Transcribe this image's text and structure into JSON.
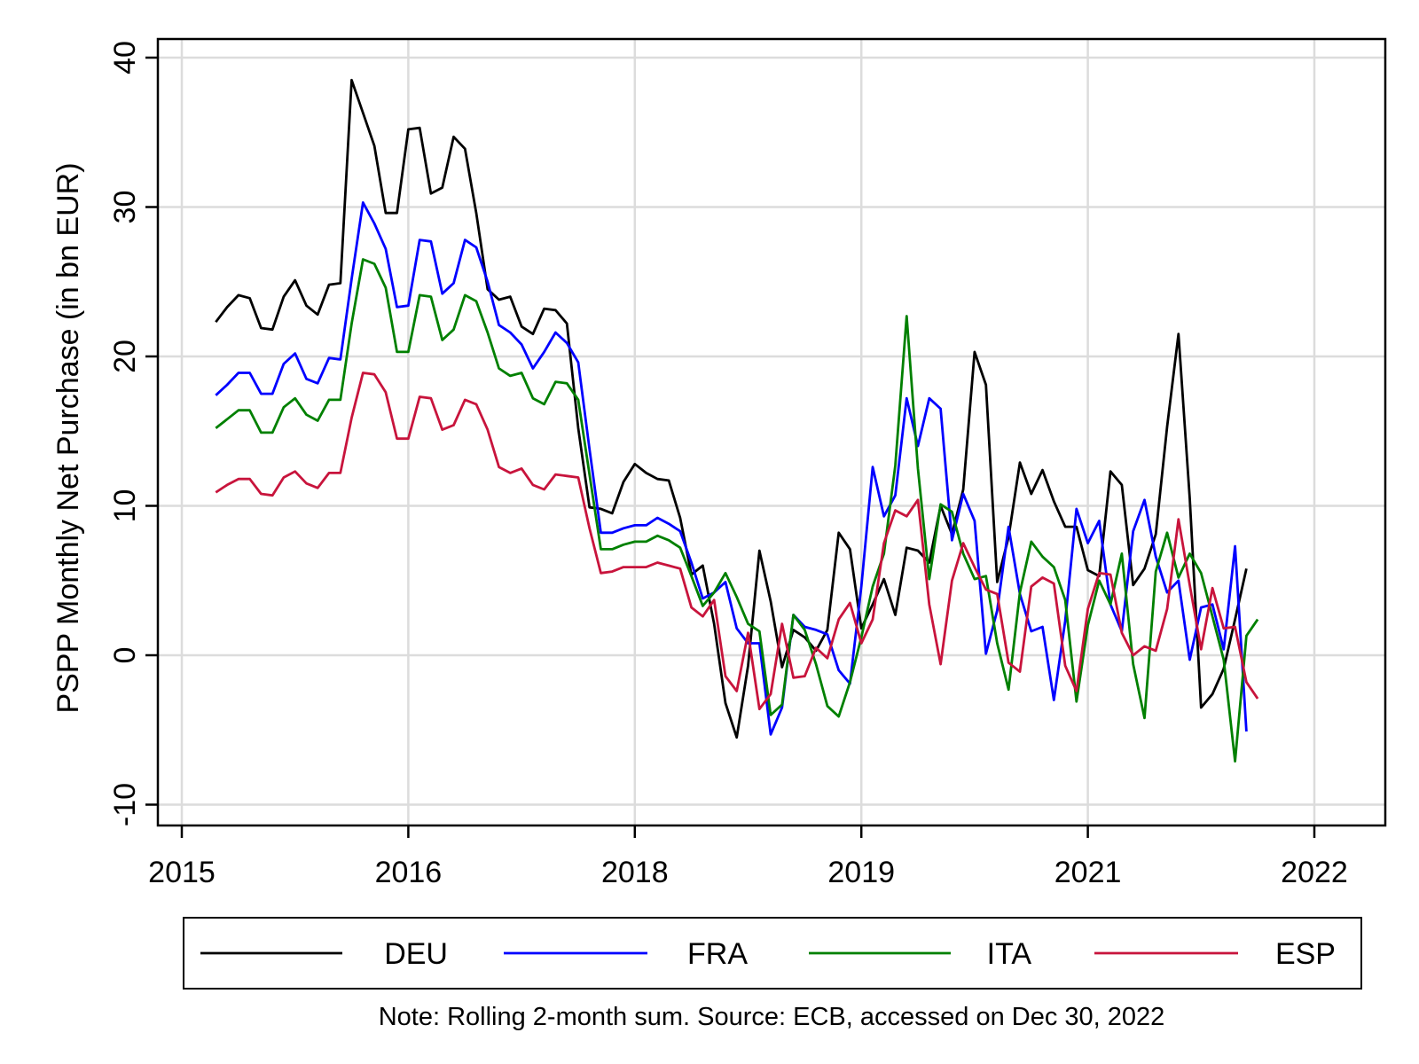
{
  "chart_data": {
    "type": "line",
    "title": "",
    "ylabel": "PSPP Monthly Net Purchase (in bn EUR)",
    "xlabel": "",
    "note": "Note: Rolling 2-month sum. Source: ECB, accessed on Dec 30, 2022",
    "ylim": [
      -10,
      40
    ],
    "y_ticks": [
      40,
      30,
      20,
      10,
      0,
      -10
    ],
    "x_tick_labels": [
      "2015",
      "2016",
      "2018",
      "2019",
      "2021",
      "2022"
    ],
    "x_tick_months": [
      0,
      20,
      40,
      60,
      80,
      100
    ],
    "x_range_months": [
      0,
      106
    ],
    "grid": true,
    "legend_placement": "bottom",
    "series": [
      {
        "name": "DEU",
        "color": "#000000",
        "start_month": 3,
        "values": [
          22.3,
          23.3,
          24.1,
          23.9,
          21.9,
          21.8,
          24.0,
          25.1,
          23.4,
          22.8,
          24.8,
          24.9,
          38.5,
          36.3,
          34.1,
          29.6,
          29.6,
          35.2,
          35.3,
          30.9,
          31.3,
          34.7,
          33.9,
          29.6,
          24.5,
          23.8,
          24.0,
          22.0,
          21.5,
          23.2,
          23.1,
          22.2,
          15.2,
          9.9,
          9.8,
          9.5,
          11.6,
          12.8,
          12.2,
          11.8,
          11.7,
          9.2,
          5.4,
          6.0,
          2.1,
          -3.2,
          -5.5,
          -0.7,
          7.0,
          3.6,
          -0.8,
          1.7,
          1.2,
          0.3,
          1.7,
          8.2,
          7.1,
          1.8,
          3.4,
          5.1,
          2.7,
          7.2,
          7.0,
          6.2,
          10.0,
          8.1,
          11.1,
          20.3,
          18.1,
          4.9,
          7.9,
          12.9,
          10.8,
          12.4,
          10.3,
          8.6,
          8.6,
          5.7,
          5.3,
          12.3,
          11.4,
          4.7,
          5.8,
          8.1,
          15.3,
          21.5,
          10.5,
          -3.5,
          -2.6,
          -0.9,
          2.4,
          5.8
        ]
      },
      {
        "name": "FRA",
        "color": "#0000FF",
        "start_month": 3,
        "values": [
          17.4,
          18.1,
          18.9,
          18.9,
          17.5,
          17.5,
          19.5,
          20.2,
          18.5,
          18.2,
          19.9,
          19.8,
          25.2,
          30.3,
          28.9,
          27.2,
          23.3,
          23.4,
          27.8,
          27.7,
          24.2,
          24.9,
          27.8,
          27.3,
          25.0,
          22.1,
          21.6,
          20.8,
          19.2,
          20.3,
          21.6,
          20.9,
          19.6,
          13.8,
          8.2,
          8.2,
          8.5,
          8.7,
          8.7,
          9.2,
          8.8,
          8.3,
          6.2,
          3.8,
          4.2,
          4.9,
          1.8,
          0.8,
          0.8,
          -5.3,
          -3.5,
          2.7,
          1.9,
          1.7,
          1.4,
          -1.0,
          -1.9,
          4.6,
          12.6,
          9.3,
          10.7,
          17.2,
          14.0,
          17.2,
          16.5,
          7.7,
          10.8,
          9.0,
          0.1,
          3.0,
          8.6,
          4.1,
          1.6,
          1.9,
          -3.0,
          2.3,
          9.8,
          7.5,
          9.0,
          3.4,
          1.6,
          8.3,
          10.4,
          6.6,
          4.2,
          5.0,
          -0.3,
          3.2,
          3.4,
          0.4,
          7.3,
          -5.1
        ]
      },
      {
        "name": "ITA",
        "color": "#008000",
        "start_month": 3,
        "values": [
          15.2,
          15.8,
          16.4,
          16.4,
          14.9,
          14.9,
          16.6,
          17.2,
          16.1,
          15.7,
          17.1,
          17.1,
          22.2,
          26.5,
          26.2,
          24.6,
          20.3,
          20.3,
          24.1,
          24.0,
          21.1,
          21.8,
          24.1,
          23.7,
          21.6,
          19.2,
          18.7,
          18.9,
          17.2,
          16.8,
          18.3,
          18.2,
          17.1,
          12.1,
          7.1,
          7.1,
          7.4,
          7.6,
          7.6,
          8.0,
          7.7,
          7.2,
          5.3,
          3.3,
          4.2,
          5.5,
          3.9,
          2.1,
          1.6,
          -4.0,
          -3.3,
          2.7,
          1.7,
          -0.6,
          -3.4,
          -4.1,
          -1.8,
          1.2,
          4.6,
          6.8,
          12.7,
          22.7,
          12.5,
          5.1,
          10.1,
          9.6,
          6.8,
          5.1,
          5.3,
          0.8,
          -2.3,
          4.2,
          7.6,
          6.6,
          5.9,
          3.7,
          -3.1,
          2.0,
          5.0,
          3.4,
          6.8,
          -0.6,
          -4.2,
          5.6,
          8.2,
          5.2,
          6.8,
          5.5,
          2.6,
          -0.3,
          -7.1,
          1.3,
          2.4
        ]
      },
      {
        "name": "ESP",
        "color": "#C8143C",
        "start_month": 3,
        "values": [
          10.9,
          11.4,
          11.8,
          11.8,
          10.8,
          10.7,
          11.9,
          12.3,
          11.5,
          11.2,
          12.2,
          12.2,
          15.9,
          18.9,
          18.8,
          17.6,
          14.5,
          14.5,
          17.3,
          17.2,
          15.1,
          15.4,
          17.1,
          16.8,
          15.1,
          12.6,
          12.2,
          12.5,
          11.4,
          11.1,
          12.1,
          12.0,
          11.9,
          8.5,
          5.5,
          5.6,
          5.9,
          5.9,
          5.9,
          6.2,
          6.0,
          5.8,
          3.2,
          2.6,
          3.7,
          -1.4,
          -2.4,
          1.5,
          -3.6,
          -2.6,
          2.1,
          -1.5,
          -1.4,
          0.5,
          -0.2,
          2.4,
          3.5,
          0.8,
          2.4,
          7.5,
          9.7,
          9.3,
          10.4,
          3.4,
          -0.6,
          5.0,
          7.5,
          5.9,
          4.4,
          4.1,
          -0.5,
          -1.1,
          4.6,
          5.2,
          4.8,
          -0.7,
          -2.4,
          3.1,
          5.5,
          5.4,
          1.5,
          0.0,
          0.6,
          0.3,
          3.1,
          9.1,
          4.7,
          0.4,
          4.5,
          1.8,
          1.9,
          -1.8,
          -2.9
        ]
      }
    ]
  }
}
